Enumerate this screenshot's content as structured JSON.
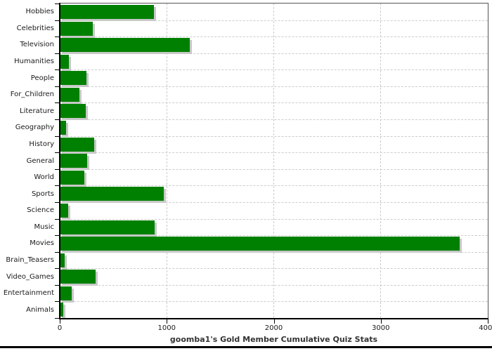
{
  "chart_data": {
    "type": "bar",
    "orientation": "horizontal",
    "title": "goomba1's Gold Member Cumulative Quiz Stats",
    "categories": [
      "Hobbies",
      "Celebrities",
      "Television",
      "Humanities",
      "People",
      "For_Children",
      "Literature",
      "Geography",
      "History",
      "General",
      "World",
      "Sports",
      "Science",
      "Music",
      "Movies",
      "Brain_Teasers",
      "Video_Games",
      "Entertainment",
      "Animals"
    ],
    "values": [
      880,
      310,
      1215,
      85,
      250,
      185,
      245,
      60,
      325,
      255,
      230,
      970,
      80,
      885,
      3740,
      45,
      335,
      110,
      35
    ],
    "xlabel": "",
    "ylabel": "",
    "xlim": [
      0,
      4000
    ],
    "x_ticks": [
      0,
      1000,
      2000,
      3000,
      4000
    ],
    "x_tick_labels": [
      "0",
      "1000",
      "2000",
      "3000",
      "4000"
    ],
    "grid": "dashed",
    "legend": "none",
    "colors": {
      "bar_fill": "#008000",
      "bar_shadow": "#c8c8c8",
      "gridline": "#cccccc",
      "axis": "#000000",
      "tick_text": "#1a1a1a",
      "title_text": "#333333"
    }
  }
}
